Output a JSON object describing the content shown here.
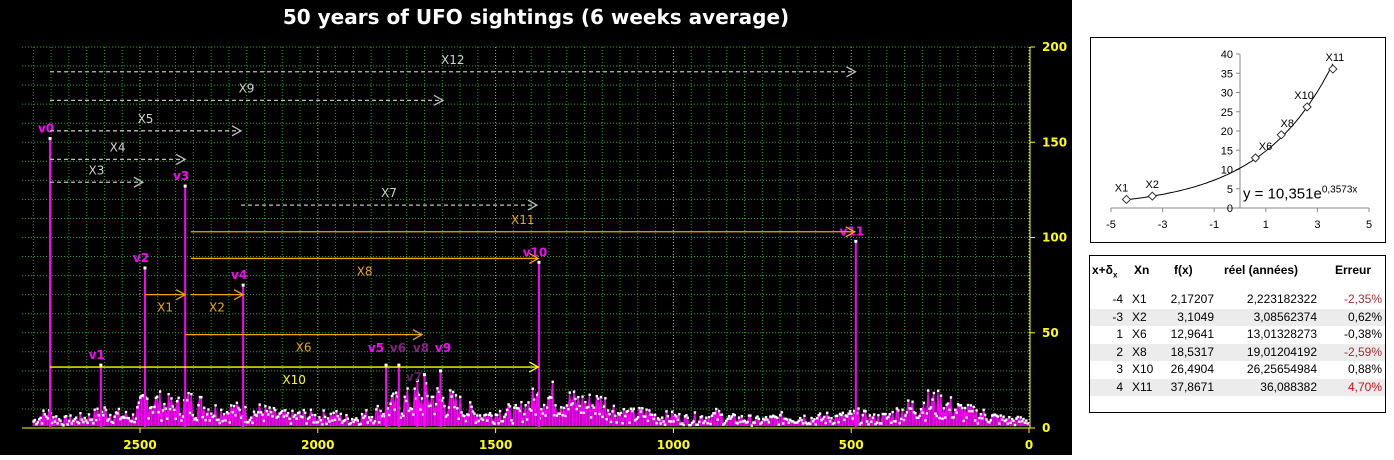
{
  "chart_data": [
    {
      "type": "line",
      "title": "50 years of UFO sightings (6 weeks average)",
      "xlim": [
        2830,
        0
      ],
      "ylim": [
        0,
        200
      ],
      "x_ticks": [
        "2500",
        "2000",
        "1500",
        "1000",
        "500",
        "0"
      ],
      "y_ticks": [
        "0",
        "50",
        "100",
        "150",
        "200"
      ],
      "grid": true,
      "colors": {
        "series": "#ff00ff",
        "points": "#ffffff",
        "grid": "#1fa81f",
        "axis": "#ffff00",
        "label": "#ff00ff",
        "arrow_grey": "#bfbfbf",
        "arrow_orange": "#f0a800",
        "arrow_yellow": "#ffff00"
      },
      "baseline": {
        "x": [
          2800,
          2760,
          2720,
          2680,
          2640,
          2600,
          2560,
          2520,
          2480,
          2440,
          2400,
          2360,
          2320,
          2280,
          2240,
          2200,
          2160,
          2120,
          2080,
          2040,
          2000,
          1960,
          1920,
          1880,
          1840,
          1800,
          1760,
          1720,
          1680,
          1640,
          1600,
          1560,
          1520,
          1480,
          1440,
          1400,
          1360,
          1320,
          1280,
          1240,
          1200,
          1160,
          1120,
          1080,
          1040,
          1000,
          960,
          920,
          880,
          840,
          800,
          760,
          720,
          680,
          640,
          600,
          560,
          520,
          480,
          440,
          400,
          360,
          320,
          280,
          240,
          200,
          160,
          120,
          80,
          40,
          0
        ],
        "y": [
          4,
          8,
          4,
          5,
          6,
          9,
          7,
          6,
          16,
          13,
          11,
          14,
          12,
          9,
          10,
          8,
          9,
          7,
          6,
          7,
          6,
          7,
          5,
          6,
          8,
          12,
          14,
          15,
          17,
          15,
          12,
          8,
          7,
          9,
          8,
          14,
          18,
          16,
          14,
          13,
          14,
          9,
          7,
          8,
          6,
          6,
          5,
          6,
          7,
          5,
          5,
          4,
          5,
          6,
          6,
          5,
          6,
          6,
          7,
          5,
          6,
          9,
          12,
          14,
          13,
          10,
          8,
          7,
          5,
          4,
          5
        ]
      },
      "peaks": [
        {
          "label": "v0",
          "x": 2753,
          "y": 152,
          "color": "#ff00ff"
        },
        {
          "label": "v1",
          "x": 2610,
          "y": 33,
          "color": "#ff00ff"
        },
        {
          "label": "v2",
          "x": 2486,
          "y": 84,
          "color": "#ff00ff"
        },
        {
          "label": "v3",
          "x": 2373,
          "y": 127,
          "color": "#ff00ff"
        },
        {
          "label": "v4",
          "x": 2210,
          "y": 75,
          "color": "#ff00ff"
        },
        {
          "label": "v5",
          "x": 1808,
          "y": 33,
          "color": "#ff00ff"
        },
        {
          "label": "v6",
          "x": 1772,
          "y": 33,
          "color": "#8a1f8a"
        },
        {
          "label": "v7",
          "x": 1720,
          "y": 25,
          "color": "#6a1a6a"
        },
        {
          "label": "v8",
          "x": 1700,
          "y": 28,
          "color": "#8a1f8a"
        },
        {
          "label": "v9",
          "x": 1655,
          "y": 30,
          "color": "#ff00ff"
        },
        {
          "label": "v10",
          "x": 1378,
          "y": 87,
          "color": "#ff00ff"
        },
        {
          "label": "v11",
          "x": 487,
          "y": 98,
          "color": "#ff00ff"
        }
      ],
      "arrows": [
        {
          "label": "X12",
          "from": 2753,
          "to": 488,
          "y": 187,
          "style": "grey"
        },
        {
          "label": "X9",
          "from": 2753,
          "to": 1648,
          "y": 172,
          "style": "grey"
        },
        {
          "label": "X5",
          "from": 2753,
          "to": 2216,
          "y": 156,
          "style": "grey"
        },
        {
          "label": "X4",
          "from": 2753,
          "to": 2373,
          "y": 141,
          "style": "grey"
        },
        {
          "label": "X3",
          "from": 2753,
          "to": 2492,
          "y": 129,
          "style": "grey"
        },
        {
          "label": "X7",
          "from": 2216,
          "to": 1384,
          "y": 117,
          "style": "grey"
        },
        {
          "label": "X11",
          "from": 2357,
          "to": 490,
          "y": 103,
          "style": "orange"
        },
        {
          "label": "X8",
          "from": 2357,
          "to": 1380,
          "y": 89,
          "style": "orange"
        },
        {
          "label": "X1",
          "from": 2486,
          "to": 2373,
          "y": 70,
          "style": "orange"
        },
        {
          "label": "X2",
          "from": 2357,
          "to": 2210,
          "y": 70,
          "style": "orange"
        },
        {
          "label": "X6",
          "from": 2373,
          "to": 1707,
          "y": 49,
          "style": "orange"
        },
        {
          "label": "X10",
          "from": 2753,
          "to": 1380,
          "y": 32,
          "style": "yellow"
        }
      ]
    },
    {
      "type": "scatter",
      "xlim": [
        -5,
        5
      ],
      "ylim": [
        0,
        40
      ],
      "x_ticks": [
        "-5",
        "-3",
        "-1",
        "1",
        "3",
        "5"
      ],
      "y_ticks": [
        "0",
        "5",
        "10",
        "15",
        "20",
        "25",
        "30",
        "35",
        "40"
      ],
      "points": [
        {
          "label": "X1",
          "x": -4.4,
          "y": 2.22
        },
        {
          "label": "X2",
          "x": -3.4,
          "y": 3.09
        },
        {
          "label": "X6",
          "x": 0.6,
          "y": 13.01
        },
        {
          "label": "X8",
          "x": 1.6,
          "y": 19.01
        },
        {
          "label": "X10",
          "x": 2.6,
          "y": 26.26
        },
        {
          "label": "X11",
          "x": 3.6,
          "y": 36.09
        }
      ],
      "trendline": {
        "a": 10.351,
        "b": 0.3573,
        "equation": "y = 10,351e",
        "exponent": "0,3573x"
      }
    }
  ],
  "table": {
    "headers": [
      "x+δ",
      "x",
      "Xn",
      "f(x)",
      "réel (années)",
      "Erreur"
    ],
    "rows": [
      {
        "x": "-4",
        "xn": "X1",
        "fx": "2,17207",
        "reel": "2,223182322",
        "err": "-2,35%",
        "err_color": "#a0302f"
      },
      {
        "x": "-3",
        "xn": "X2",
        "fx": "3,1049",
        "reel": "3,08562374",
        "err": "0,62%",
        "err_color": "#000000"
      },
      {
        "x": "1",
        "xn": "X6",
        "fx": "12,9641",
        "reel": "13,01328273",
        "err": "-0,38%",
        "err_color": "#000000"
      },
      {
        "x": "2",
        "xn": "X8",
        "fx": "18,5317",
        "reel": "19,01204192",
        "err": "-2,59%",
        "err_color": "#a0302f"
      },
      {
        "x": "3",
        "xn": "X10",
        "fx": "26,4904",
        "reel": "26,25654984",
        "err": "0,88%",
        "err_color": "#000000"
      },
      {
        "x": "4",
        "xn": "X11",
        "fx": "37,8671",
        "reel": "36,088382",
        "err": "4,70%",
        "err_color": "#d01010"
      }
    ]
  }
}
